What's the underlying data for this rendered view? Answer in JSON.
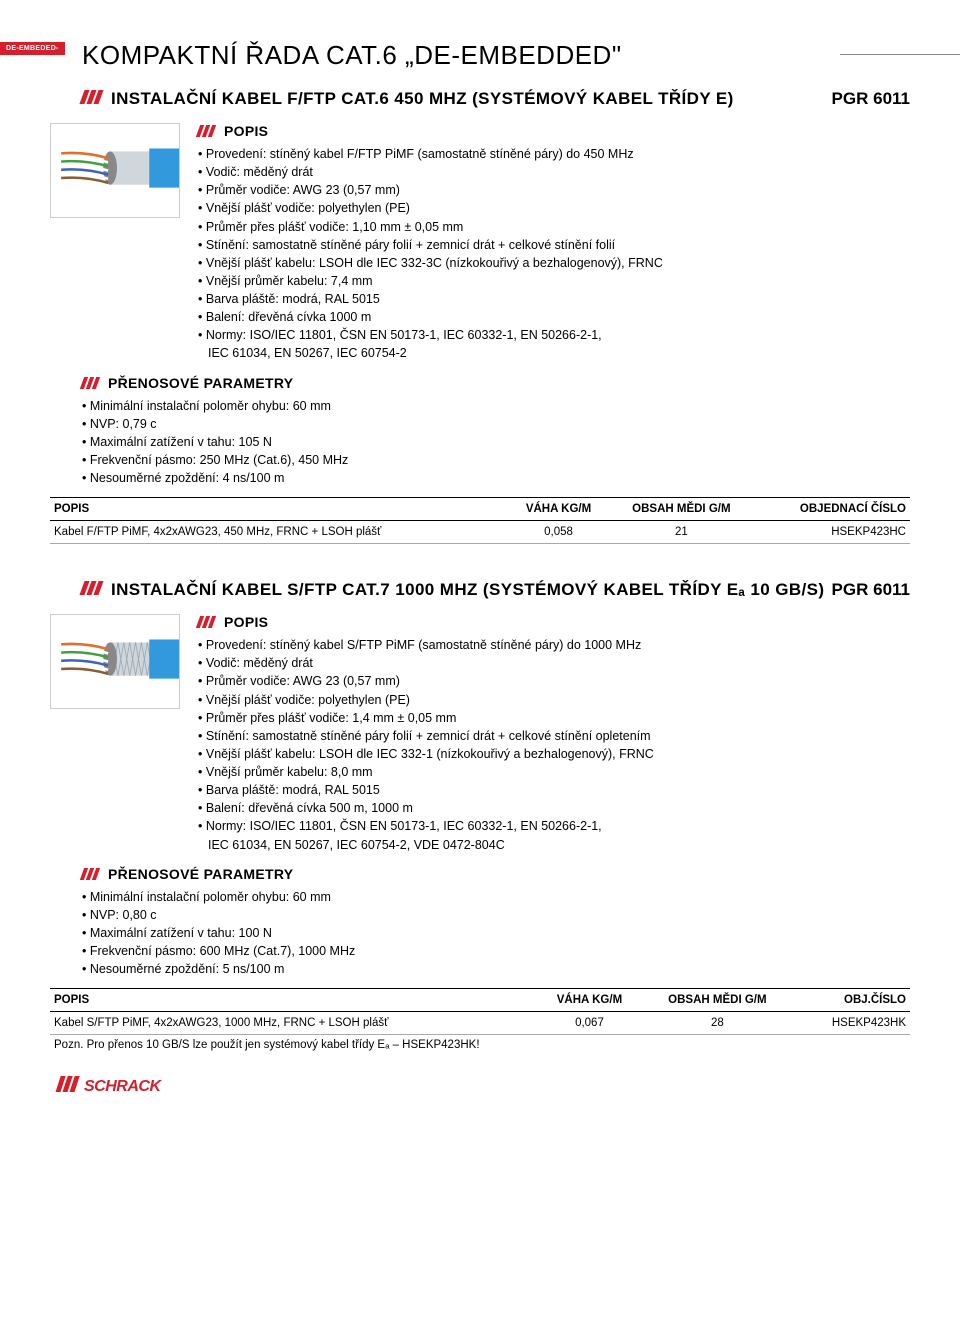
{
  "badge": "DE-EMBEDED-",
  "pageTitle": "KOMPAKTNÍ ŘADA CAT.6 „DE-EMBEDDED\"",
  "products": [
    {
      "title": "INSTALAČNÍ KABEL F/FTP CAT.6 450 MHZ (SYSTÉMOVÝ KABEL TŘÍDY E)",
      "pgr": "PGR 6011",
      "cableColors": {
        "main": "#3399dd",
        "foil": "#cfd7dc",
        "texture": "#b8c4cc"
      },
      "popisLabel": "POPIS",
      "popis": [
        "Provedení: stíněný kabel F/FTP PiMF (samostatně stíněné páry) do 450 MHz",
        "Vodič: měděný drát",
        "Průměr vodiče: AWG 23 (0,57 mm)",
        "Vnější plášť vodiče: polyethylen (PE)",
        "Průměr přes plášť vodiče: 1,10 mm ± 0,05 mm",
        "Stínění: samostatně stíněné páry folií + zemnicí drát + celkové stínění folií",
        "Vnější plášť kabelu: LSOH dle IEC 332-3C (nízkokouřivý a bezhalogenový), FRNC",
        "Vnější průměr kabelu: 7,4 mm",
        "Barva pláště: modrá, RAL 5015",
        "Balení: dřevěná cívka 1000 m",
        "Normy: ISO/IEC 11801, ČSN EN 50173-1, IEC 60332-1, EN 50266-2-1,",
        "IEC 61034, EN 50267, IEC 60754-2"
      ],
      "paramLabel": "PŘENOSOVÉ PARAMETRY",
      "params": [
        "Minimální instalační poloměr ohybu: 60 mm",
        "NVP: 0,79 c",
        "Maximální zatížení v tahu: 105 N",
        "Frekvenční pásmo: 250 MHz (Cat.6), 450 MHz",
        "Nesouměrné zpoždění: 4 ns/100 m"
      ],
      "table": {
        "headers": [
          "POPIS",
          "VÁHA KG/M",
          "OBSAH MĚDI G/M",
          "OBJEDNACÍ ČÍSLO"
        ],
        "rows": [
          [
            "Kabel F/FTP PiMF, 4x2xAWG23, 450 MHz, FRNC + LSOH plášť",
            "0,058",
            "21",
            "HSEKP423HC"
          ]
        ]
      },
      "note": ""
    },
    {
      "title": "INSTALAČNÍ KABEL S/FTP CAT.7 1000 MHZ (SYSTÉMOVÝ KABEL TŘÍDY Eₐ 10 GB/S)",
      "pgr": "PGR 6011",
      "cableColors": {
        "main": "#3399dd",
        "foil": "#cfd7dc",
        "texture": "#b0bcc5"
      },
      "popisLabel": "POPIS",
      "popis": [
        "Provedení: stíněný kabel S/FTP PiMF (samostatně stíněné páry) do 1000 MHz",
        "Vodič: měděný drát",
        "Průměr vodiče: AWG 23 (0,57 mm)",
        "Vnější plášť vodiče: polyethylen (PE)",
        "Průměr přes plášť vodiče: 1,4 mm ± 0,05 mm",
        "Stínění: samostatně stíněné páry folií + zemnicí drát + celkové stínění opletením",
        "Vnější plášť kabelu: LSOH dle IEC 332-1 (nízkokouřivý a bezhalogenový), FRNC",
        "Vnější průměr kabelu: 8,0 mm",
        "Barva pláště: modrá, RAL 5015",
        "Balení: dřevěná cívka 500 m, 1000 m",
        "Normy: ISO/IEC 11801, ČSN EN 50173-1, IEC 60332-1, EN 50266-2-1,",
        "IEC 61034, EN 50267, IEC 60754-2, VDE 0472-804C"
      ],
      "paramLabel": "PŘENOSOVÉ PARAMETRY",
      "params": [
        "Minimální instalační poloměr ohybu: 60 mm",
        "NVP: 0,80 c",
        "Maximální zatížení v tahu: 100 N",
        "Frekvenční pásmo: 600 MHz (Cat.7), 1000 MHz",
        "Nesouměrné zpoždění: 5 ns/100 m"
      ],
      "table": {
        "headers": [
          "POPIS",
          "VÁHA KG/M",
          "OBSAH MĚDI G/M",
          "OBJ.ČÍSLO"
        ],
        "rows": [
          [
            "Kabel S/FTP PiMF, 4x2xAWG23, 1000 MHz, FRNC + LSOH plášť",
            "0,067",
            "28",
            "HSEKP423HK"
          ]
        ]
      },
      "note": "Pozn.  Pro přenos 10 GB/S lze použít jen systémový kabel třídy Eₐ – HSEKP423HK!"
    }
  ],
  "colors": {
    "accent": "#d51f2d",
    "text": "#000000",
    "rule": "#000000"
  }
}
